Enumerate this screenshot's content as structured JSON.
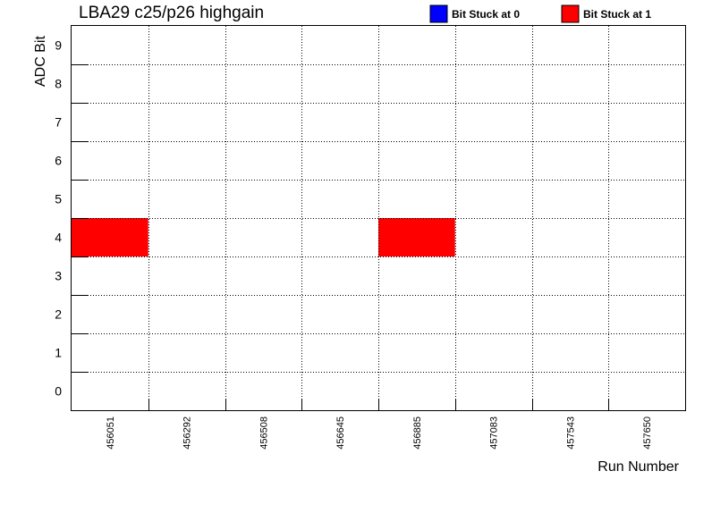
{
  "chart_data": {
    "type": "heatmap",
    "title": "LBA29 c25/p26 highgain",
    "xlabel": "Run Number",
    "ylabel": "ADC Bit",
    "categories": [
      "456051",
      "456292",
      "456508",
      "456645",
      "456885",
      "457083",
      "457543",
      "457650"
    ],
    "y_values": [
      "0",
      "1",
      "2",
      "3",
      "4",
      "5",
      "6",
      "7",
      "8",
      "9"
    ],
    "grid": true,
    "legend_position": "top-right",
    "series": [
      {
        "name": "Bit Stuck at 0",
        "color": "#0000ff",
        "cells": []
      },
      {
        "name": "Bit Stuck at 1",
        "color": "#ff0000",
        "cells": [
          {
            "x": "456051",
            "y": "4"
          },
          {
            "x": "456885",
            "y": "4"
          }
        ]
      }
    ]
  }
}
